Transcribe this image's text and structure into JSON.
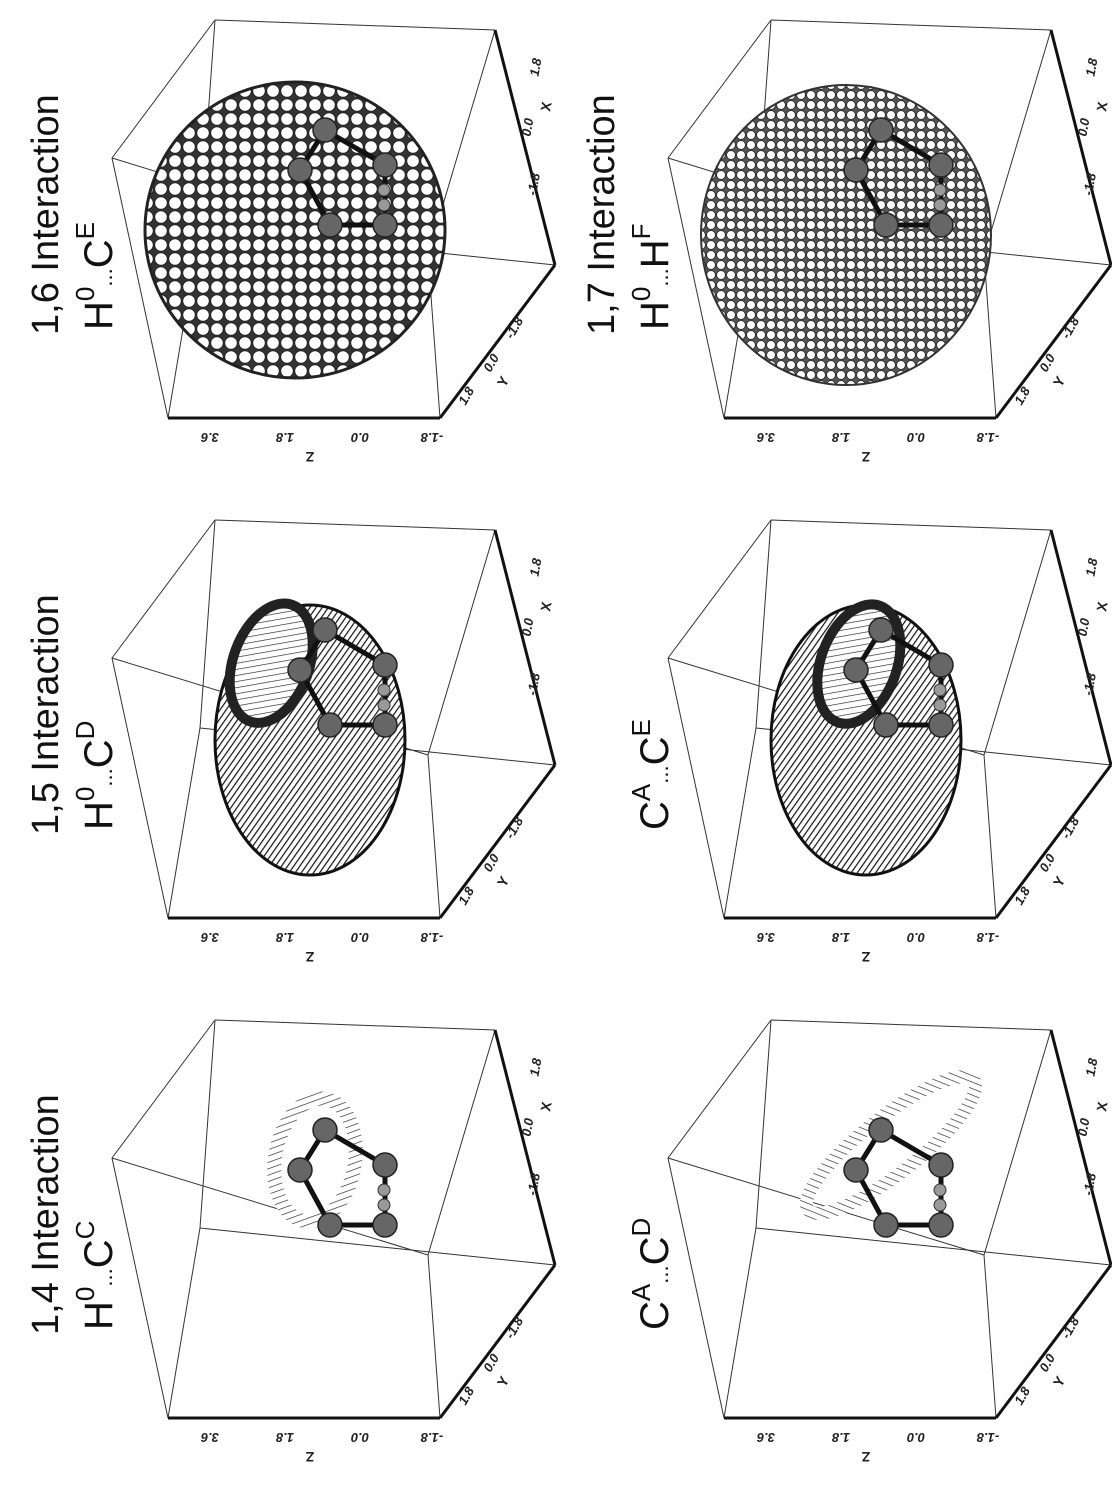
{
  "panels": [
    {
      "title": "1,6 Interaction",
      "label": {
        "atom1": "H",
        "sup1": "0",
        "dots": "...",
        "atom2": "C",
        "sup2": "E"
      },
      "axes": {
        "z_label": "Z",
        "z_ticks": [
          "3.6",
          "1.8",
          "0.0",
          "-1.8"
        ],
        "y_label": "Y",
        "y_ticks": [
          "1.8",
          "0.0",
          "-1.8"
        ],
        "x_label": "X",
        "x_ticks": [
          "-1.8",
          "0.0",
          "1.8"
        ]
      }
    },
    {
      "title": "1,7 Interaction",
      "label": {
        "atom1": "H",
        "sup1": "0",
        "dots": "...",
        "atom2": "H",
        "sup2": "F"
      },
      "axes": {
        "z_label": "Z",
        "z_ticks": [
          "3.6",
          "1.8",
          "0.0",
          "-1.8"
        ],
        "y_label": "Y",
        "y_ticks": [
          "1.8",
          "0.0",
          "-1.8"
        ],
        "x_label": "X",
        "x_ticks": [
          "-1.8",
          "0.0",
          "1.8"
        ]
      }
    },
    {
      "title": "1,5 Interaction",
      "label": {
        "atom1": "H",
        "sup1": "0",
        "dots": "...",
        "atom2": "C",
        "sup2": "D"
      },
      "axes": {
        "z_label": "Z",
        "z_ticks": [
          "3.6",
          "1.8",
          "0.0",
          "-1.8"
        ],
        "y_label": "Y",
        "y_ticks": [
          "1.8",
          "0.0",
          "-1.8"
        ],
        "x_label": "X",
        "x_ticks": [
          "-1.8",
          "0.0",
          "1.8"
        ]
      }
    },
    {
      "label": {
        "atom1": "C",
        "sup1": "A",
        "dots": "...",
        "atom2": "C",
        "sup2": "E"
      },
      "axes": {
        "z_label": "Z",
        "z_ticks": [
          "3.6",
          "1.8",
          "0.0",
          "-1.8"
        ],
        "y_label": "Y",
        "y_ticks": [
          "1.8",
          "0.0",
          "-1.8"
        ],
        "x_label": "X",
        "x_ticks": [
          "-1.8",
          "0.0",
          "1.8"
        ]
      }
    },
    {
      "title": "1,4 Interaction",
      "label": {
        "atom1": "H",
        "sup1": "0",
        "dots": "...",
        "atom2": "C",
        "sup2": "C"
      },
      "axes": {
        "z_label": "Z",
        "z_ticks": [
          "3.6",
          "1.8",
          "0.0",
          "-1.8"
        ],
        "y_label": "Y",
        "y_ticks": [
          "1.8",
          "0.0",
          "-1.8"
        ],
        "x_label": "X",
        "x_ticks": [
          "-1.8",
          "0.0",
          "1.8"
        ]
      }
    },
    {
      "label": {
        "atom1": "C",
        "sup1": "A",
        "dots": "...",
        "atom2": "C",
        "sup2": "D"
      },
      "axes": {
        "z_label": "Z",
        "z_ticks": [
          "3.6",
          "1.8",
          "0.0",
          "-1.8"
        ],
        "y_label": "Y",
        "y_ticks": [
          "1.8",
          "0.0",
          "-1.8"
        ],
        "x_label": "X",
        "x_ticks": [
          "-1.8",
          "0.0",
          "1.8"
        ]
      }
    }
  ]
}
